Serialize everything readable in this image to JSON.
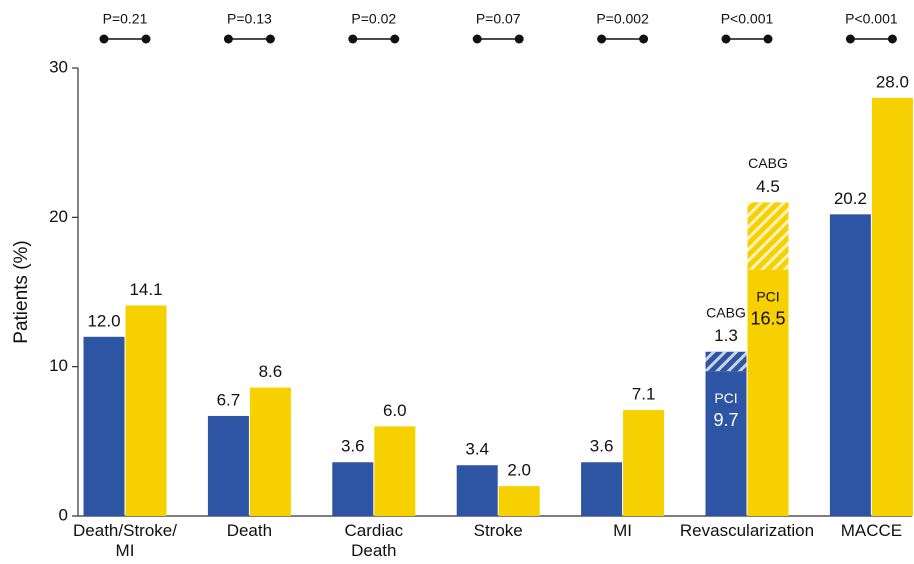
{
  "chart_data": {
    "type": "bar",
    "y_label": "Patients (%)",
    "categories": [
      [
        "Death/Stroke/",
        "MI"
      ],
      [
        "Death"
      ],
      [
        "Cardiac",
        "Death"
      ],
      [
        "Stroke"
      ],
      [
        "MI"
      ],
      [
        "Revascularization"
      ],
      [
        "MACCE"
      ]
    ],
    "p_values": [
      "P=0.21",
      "P=0.13",
      "P=0.02",
      "P=0.07",
      "P=0.002",
      "P<0.001",
      "P<0.001"
    ],
    "series": [
      {
        "color": "#2d55a4",
        "values": [
          12.0,
          6.7,
          3.6,
          3.4,
          3.6,
          9.7,
          20.2
        ],
        "value_labels": [
          "12.0",
          "6.7",
          "3.6",
          "3.4",
          "3.6",
          "9.7",
          "20.2"
        ],
        "segment_labels": [
          null,
          null,
          null,
          null,
          null,
          "PCI",
          null
        ]
      },
      {
        "color": "#f7d000",
        "values": [
          14.1,
          8.6,
          6.0,
          2.0,
          7.1,
          16.5,
          28.0
        ],
        "value_labels": [
          "14.1",
          "8.6",
          "6.0",
          "2.0",
          "7.1",
          "16.5",
          "28.0"
        ],
        "segment_labels": [
          null,
          null,
          null,
          null,
          null,
          "PCI",
          null
        ]
      },
      {
        "name": "CABG",
        "stacked": true,
        "hatched": true,
        "color": "#2d55a4",
        "values": [
          null,
          null,
          null,
          null,
          null,
          1.3,
          null
        ],
        "value_labels": [
          null,
          null,
          null,
          null,
          null,
          "1.3",
          null
        ]
      },
      {
        "name": "CABG",
        "stacked": true,
        "hatched": true,
        "color": "#f7d000",
        "values": [
          null,
          null,
          null,
          null,
          null,
          4.5,
          null
        ],
        "value_labels": [
          null,
          null,
          null,
          null,
          null,
          "4.5",
          null
        ]
      }
    ],
    "ylim": [
      0,
      30
    ],
    "yticks": [
      0,
      10,
      20,
      30
    ]
  }
}
